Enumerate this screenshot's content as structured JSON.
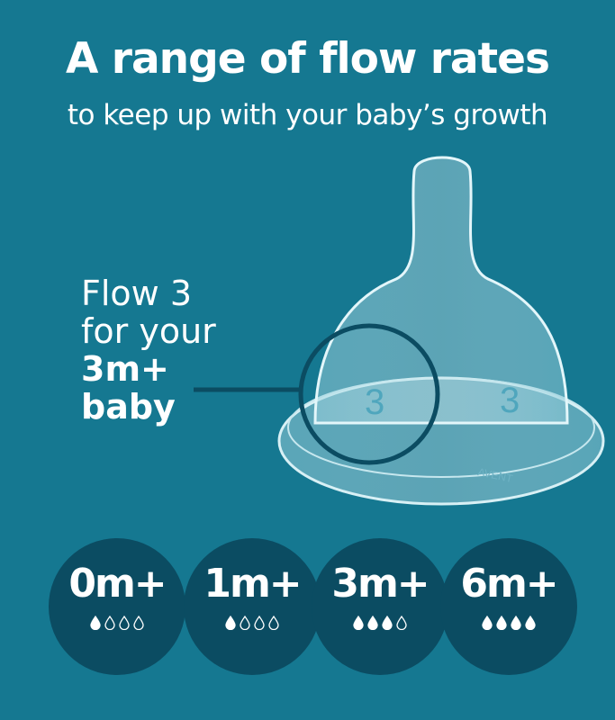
{
  "headline": "A range of flow rates",
  "subheadline": "to keep up with your baby’s growth",
  "callout": {
    "line1": "Flow 3",
    "line2": "for your",
    "age": "3m+",
    "line4": "baby"
  },
  "product": {
    "nipple_number": "3",
    "brand_mark": "AVENT"
  },
  "colors": {
    "background": "#157891",
    "badge": "#0b4c62",
    "text": "#ffffff"
  },
  "flow_rates": [
    {
      "age": "0m+",
      "filled_drops": 1,
      "total_drops": 4
    },
    {
      "age": "1m+",
      "filled_drops": 1,
      "total_drops": 4
    },
    {
      "age": "3m+",
      "filled_drops": 3,
      "total_drops": 4
    },
    {
      "age": "6m+",
      "filled_drops": 4,
      "total_drops": 4
    }
  ]
}
